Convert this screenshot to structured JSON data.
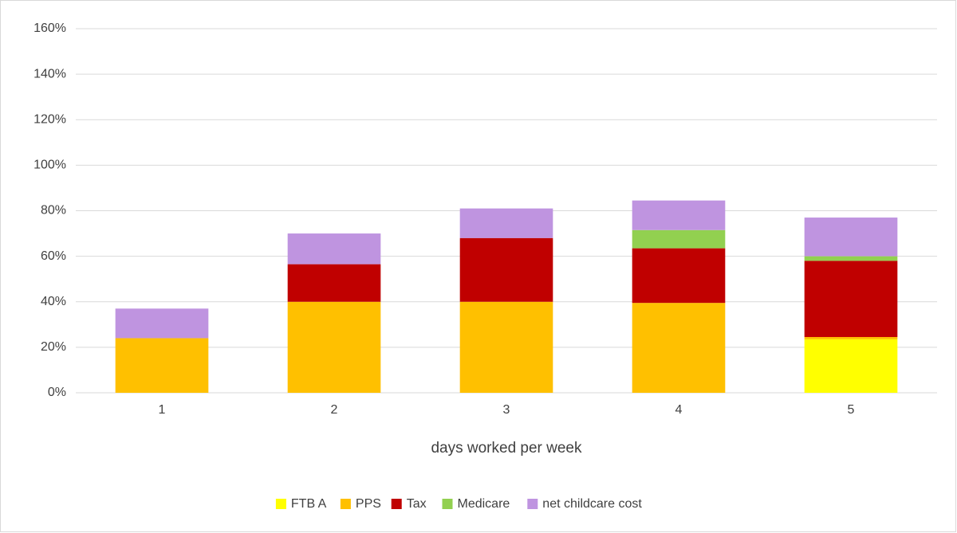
{
  "chart_data": {
    "type": "stacked_bar",
    "xlabel": "days worked per week",
    "categories": [
      "1",
      "2",
      "3",
      "4",
      "5"
    ],
    "series": [
      {
        "name": "FTB A",
        "color": "#ffff00",
        "values": [
          0,
          0,
          0,
          0,
          23.5
        ]
      },
      {
        "name": "PPS",
        "color": "#ffc000",
        "values": [
          24,
          40,
          40,
          39.5,
          1
        ]
      },
      {
        "name": "Tax",
        "color": "#c00000",
        "values": [
          0,
          16.5,
          28,
          24,
          33.5
        ]
      },
      {
        "name": "Medicare",
        "color": "#92d050",
        "values": [
          0,
          0,
          0,
          8,
          2
        ]
      },
      {
        "name": "net childcare cost",
        "color": "#bf94e0",
        "values": [
          13,
          13.5,
          13,
          13,
          17
        ]
      }
    ],
    "ylim": [
      0,
      160
    ],
    "yticks": [
      {
        "value": 0,
        "label": "0%"
      },
      {
        "value": 20,
        "label": "20%"
      },
      {
        "value": 40,
        "label": "40%"
      },
      {
        "value": 60,
        "label": "60%"
      },
      {
        "value": 80,
        "label": "80%"
      },
      {
        "value": 100,
        "label": "100%"
      },
      {
        "value": 120,
        "label": "120%"
      },
      {
        "value": 140,
        "label": "140%"
      },
      {
        "value": 160,
        "label": "160%"
      }
    ],
    "grid": true,
    "legend": "bottom"
  }
}
